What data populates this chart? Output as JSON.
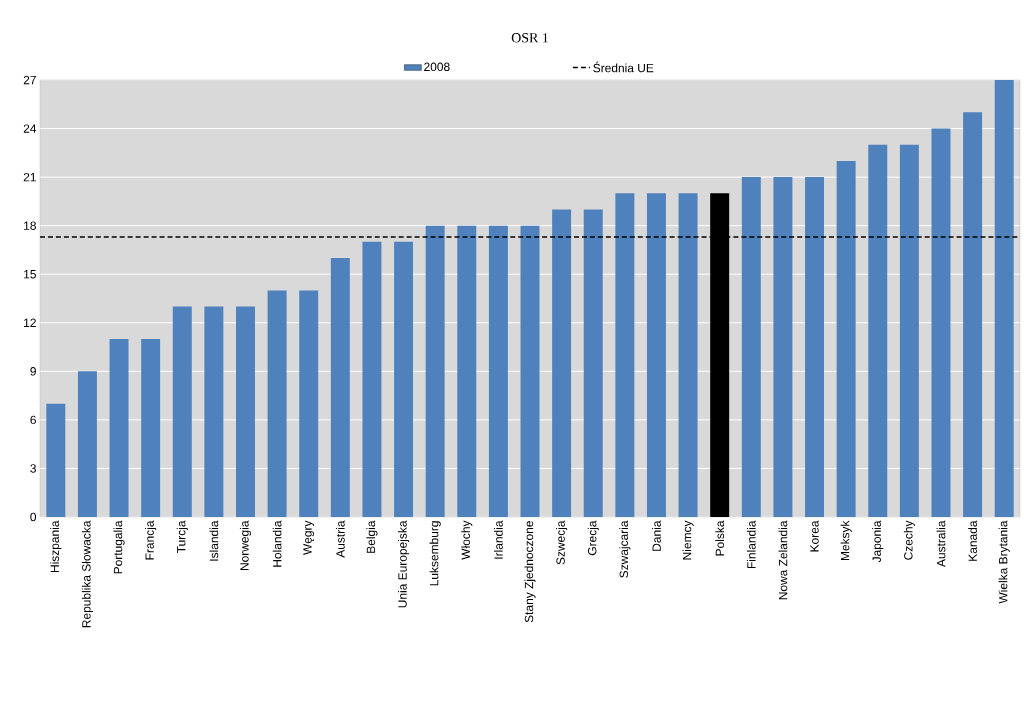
{
  "chart_data": {
    "type": "bar",
    "title": "OSR 1",
    "categories": [
      "Hiszpania",
      "Republika Słowacka",
      "Portugalia",
      "Francja",
      "Turcja",
      "Islandia",
      "Norwegia",
      "Holandia",
      "Węgry",
      "Austria",
      "Belgia",
      "Unia Europejska",
      "Luksemburg",
      "Włochy",
      "Irlandia",
      "Stany Zjednoczone",
      "Szwecja",
      "Grecja",
      "Szwajcaria",
      "Dania",
      "Niemcy",
      "Polska",
      "Finlandia",
      "Nowa Zelandia",
      "Korea",
      "Meksyk",
      "Japonia",
      "Czechy",
      "Australia",
      "Kanada",
      "Wielka Brytania"
    ],
    "series": [
      {
        "name": "2008",
        "color": "#4f81bd",
        "values": [
          7,
          9,
          11,
          11,
          13,
          13,
          13,
          14,
          14,
          16,
          17,
          17,
          18,
          18,
          18,
          18,
          19,
          19,
          20,
          20,
          20,
          20,
          21,
          21,
          21,
          22,
          23,
          23,
          24,
          25,
          27
        ],
        "colors": [
          "#4f81bd",
          "#4f81bd",
          "#4f81bd",
          "#4f81bd",
          "#4f81bd",
          "#4f81bd",
          "#4f81bd",
          "#4f81bd",
          "#4f81bd",
          "#4f81bd",
          "#4f81bd",
          "#4f81bd",
          "#4f81bd",
          "#4f81bd",
          "#4f81bd",
          "#4f81bd",
          "#4f81bd",
          "#4f81bd",
          "#4f81bd",
          "#4f81bd",
          "#4f81bd",
          "#000000",
          "#4f81bd",
          "#4f81bd",
          "#4f81bd",
          "#4f81bd",
          "#4f81bd",
          "#4f81bd",
          "#4f81bd",
          "#4f81bd",
          "#4f81bd"
        ]
      }
    ],
    "ref_lines": [
      {
        "axis": "y",
        "value": 17.3,
        "label": "Średnia UE",
        "color": "#000000",
        "line_style": "dashed"
      }
    ],
    "ylim": [
      0,
      27
    ],
    "yticks": [
      0,
      3,
      6,
      9,
      12,
      15,
      18,
      21,
      24,
      27
    ],
    "grid": "y",
    "legend": "top"
  }
}
